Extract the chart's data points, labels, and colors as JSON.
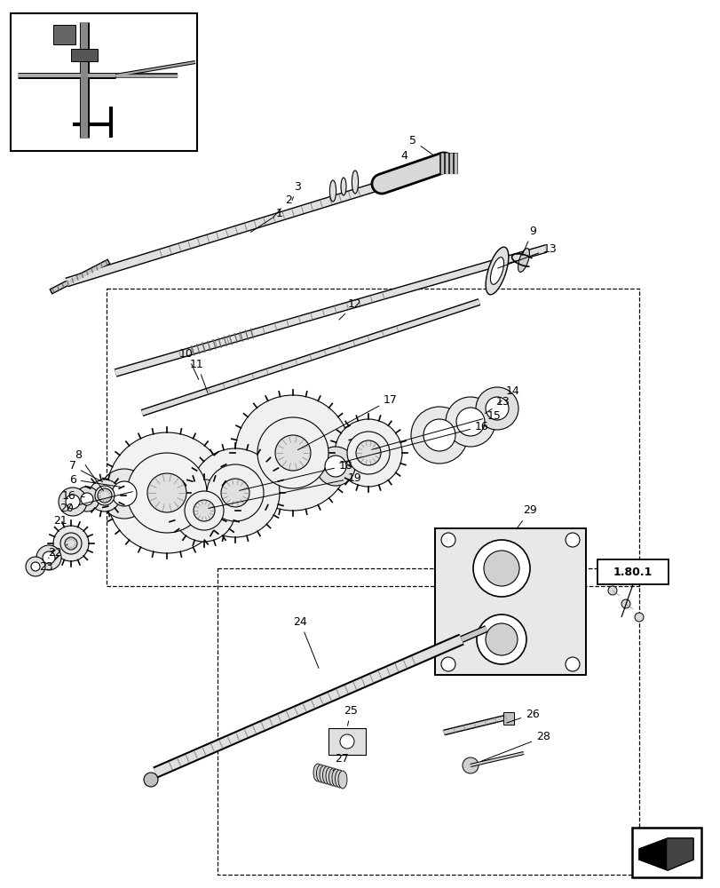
{
  "bg_color": "#ffffff",
  "fig_width": 8.12,
  "fig_height": 10.0,
  "dpi": 100,
  "ref_box_text": "1.80.1"
}
